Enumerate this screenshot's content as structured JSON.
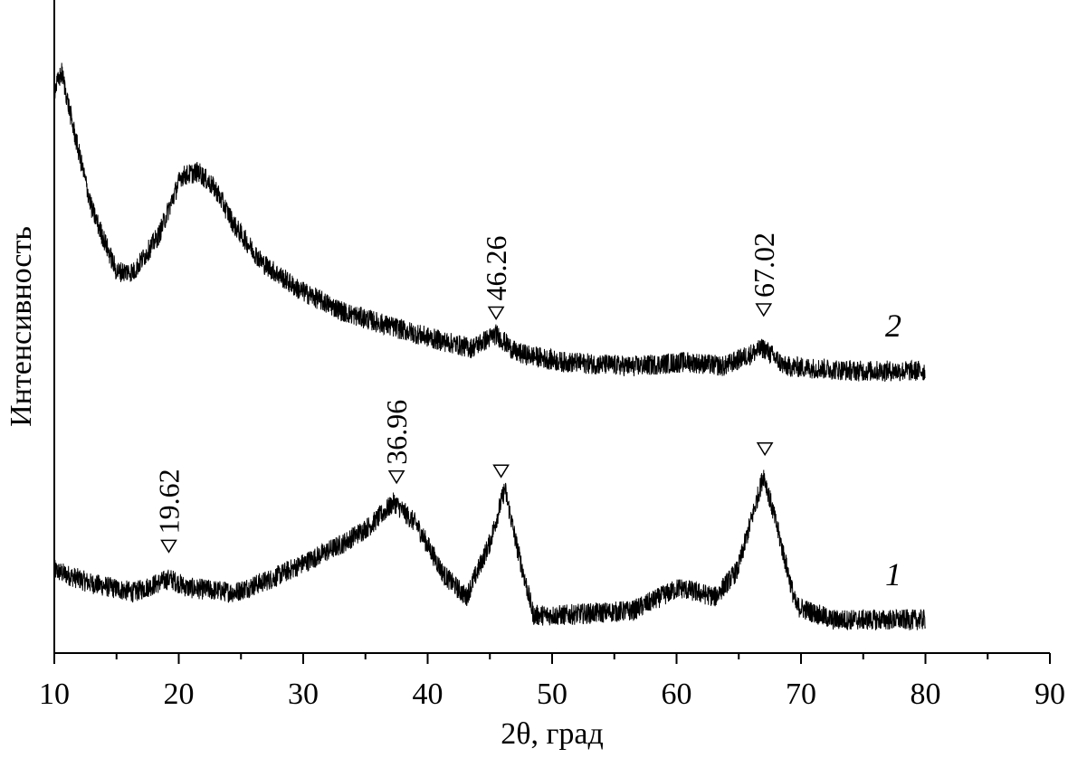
{
  "chart_data": {
    "type": "line",
    "title": "",
    "xlabel": "2θ, град",
    "ylabel": "Интенсивность",
    "xlim": [
      10,
      90
    ],
    "ylim": [
      0,
      100
    ],
    "x_ticks_major": [
      10,
      20,
      30,
      40,
      50,
      60,
      70,
      80,
      90
    ],
    "x_ticks_minor_step": 5,
    "y_ticks": [],
    "grid": false,
    "legend": "none",
    "line_color": "#000000",
    "series": [
      {
        "label": "1",
        "x": [
          10,
          12.9,
          16.4,
          19.3,
          20.7,
          24.5,
          27.5,
          30.4,
          33.3,
          35.5,
          37.3,
          39.1,
          41.3,
          43.1,
          45.0,
          46.2,
          47.1,
          48.5,
          50.7,
          56.5,
          60.2,
          63.1,
          64.9,
          67.0,
          68.2,
          69.6,
          72.5,
          80
        ],
        "y": [
          12.7,
          10.7,
          9.3,
          11.4,
          10.0,
          9.3,
          11.4,
          14.1,
          16.9,
          19.7,
          23.1,
          19.7,
          12.0,
          8.6,
          16.9,
          25.2,
          16.9,
          5.8,
          5.8,
          6.5,
          10.0,
          8.6,
          12.7,
          27.3,
          18.3,
          7.2,
          5.1,
          5.1
        ]
      },
      {
        "label": "2",
        "x": [
          10,
          10.6,
          11.5,
          13,
          15,
          16.4,
          18.4,
          20.2,
          21.6,
          23,
          24.5,
          26.7,
          29.6,
          33.3,
          36.9,
          40.5,
          43.5,
          45.5,
          47.1,
          50.7,
          56.5,
          60.9,
          63.8,
          67.0,
          68.7,
          74.5,
          80
        ],
        "y": [
          86.1,
          88.9,
          80.6,
          68.1,
          58.4,
          58.4,
          64.0,
          73.0,
          73.7,
          70.9,
          65.4,
          59.8,
          55.7,
          52.2,
          50.1,
          48.1,
          46.7,
          48.8,
          46.0,
          44.6,
          43.9,
          44.6,
          43.9,
          46.7,
          43.9,
          43.2,
          43.2
        ]
      }
    ],
    "annotations": [
      {
        "marker": "triangle-down",
        "x": 19.2,
        "y": 16.3,
        "text": "19.62"
      },
      {
        "marker": "triangle-down",
        "x": 37.5,
        "y": 26.9,
        "text": "36.96"
      },
      {
        "marker": "triangle-down",
        "x": 45.9,
        "y": 27.8,
        "text": ""
      },
      {
        "marker": "triangle-down",
        "x": 67.1,
        "y": 31.2,
        "text": ""
      },
      {
        "marker": "triangle-down",
        "x": 45.5,
        "y": 52.0,
        "text": "46.26"
      },
      {
        "marker": "triangle-down",
        "x": 67.0,
        "y": 52.5,
        "text": "67.02"
      }
    ]
  }
}
